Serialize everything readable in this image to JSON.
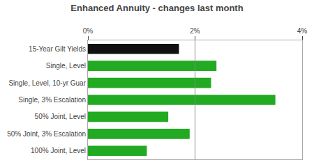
{
  "chart_data": {
    "type": "bar",
    "orientation": "horizontal",
    "title": "Enhanced Annuity - changes last month",
    "categories": [
      "100% Joint, Level",
      "50% Joint, 3% Escalation",
      "50% Joint, Level",
      "Single, 3% Escalation",
      "Single, Level, 10-yr Guar",
      "Single, Level",
      "15-Year Gilt Yields"
    ],
    "values": [
      1.1,
      1.9,
      1.5,
      3.5,
      2.3,
      2.4,
      1.7
    ],
    "colors": [
      "#22aa22",
      "#22aa22",
      "#22aa22",
      "#22aa22",
      "#22aa22",
      "#22aa22",
      "#111111"
    ],
    "xlim": [
      0,
      4
    ],
    "xticks": [
      {
        "value": 0,
        "label": "0%"
      },
      {
        "value": 2,
        "label": "2%"
      },
      {
        "value": 4,
        "label": "4%"
      }
    ],
    "reference_line": 2,
    "grid": false
  }
}
